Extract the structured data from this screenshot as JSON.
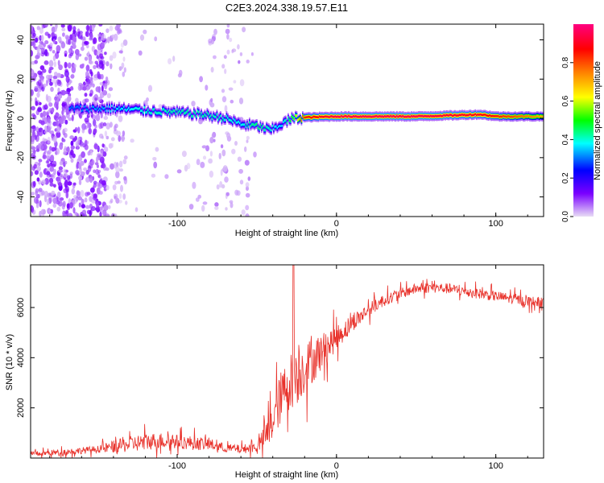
{
  "title": "C2E3.2024.338.19.57.E11",
  "chart_data": [
    {
      "type": "heatmap",
      "xlabel": "Height of straight line (km)",
      "ylabel": "Frequency (Hz)",
      "xlim": [
        -192,
        130
      ],
      "ylim": [
        -50,
        48
      ],
      "xticks": [
        -100,
        0,
        100
      ],
      "yticks": [
        -40,
        -20,
        0,
        20,
        40
      ],
      "colorbar": {
        "label": "Normalized spectral amplitude",
        "range": [
          0,
          1
        ],
        "ticks": [
          0,
          0.2,
          0.4,
          0.6,
          0.8
        ],
        "tick_labels": [
          "0.0",
          "0.2",
          "0.4",
          "0.6",
          "0.8"
        ],
        "colormap": [
          "#e8dcf5",
          "#7a00ff",
          "#0000ff",
          "#00ffff",
          "#00ff00",
          "#ffff00",
          "#ff8000",
          "#ff0000",
          "#ff0080"
        ]
      },
      "ridge": {
        "x": [
          -165,
          -140,
          -120,
          -100,
          -85,
          -70,
          -60,
          -50,
          -42,
          -35,
          -28,
          -20,
          0,
          50,
          90,
          100,
          130
        ],
        "freq": [
          5,
          5,
          4,
          3,
          2,
          0,
          -3,
          -4,
          -6,
          -3,
          0,
          0.5,
          1,
          1,
          2,
          1,
          1
        ],
        "amplitude": [
          0.3,
          0.35,
          0.4,
          0.42,
          0.42,
          0.4,
          0.38,
          0.45,
          0.4,
          0.35,
          0.5,
          0.85,
          0.95,
          0.95,
          0.9,
          0.85,
          0.7
        ]
      }
    },
    {
      "type": "line",
      "xlabel": "Height of straight line (km)",
      "ylabel": "SNR (10 * v/v)",
      "xlim": [
        -192,
        130
      ],
      "ylim": [
        0,
        7700
      ],
      "xticks": [
        -100,
        0,
        100
      ],
      "yticks": [
        2000,
        4000,
        6000
      ],
      "color": "#e8312a",
      "envelope": {
        "x": [
          -192,
          -170,
          -150,
          -140,
          -130,
          -120,
          -110,
          -100,
          -90,
          -80,
          -70,
          -60,
          -50,
          -45,
          -40,
          -35,
          -30,
          -25,
          -20,
          -15,
          -10,
          -5,
          0,
          10,
          20,
          30,
          40,
          50,
          60,
          70,
          80,
          90,
          100,
          110,
          120,
          130
        ],
        "y": [
          150,
          250,
          350,
          450,
          550,
          650,
          700,
          650,
          600,
          550,
          400,
          350,
          450,
          800,
          1500,
          2400,
          3000,
          3300,
          3600,
          3900,
          4200,
          4500,
          4800,
          5400,
          5900,
          6300,
          6550,
          6750,
          6800,
          6750,
          6650,
          6550,
          6450,
          6350,
          6250,
          6200
        ],
        "amp": [
          150,
          180,
          200,
          350,
          450,
          500,
          450,
          400,
          400,
          350,
          250,
          250,
          300,
          700,
          1200,
          1500,
          1600,
          1700,
          1500,
          1300,
          1100,
          900,
          700,
          500,
          400,
          350,
          300,
          300,
          300,
          300,
          300,
          300,
          300,
          300,
          300,
          300
        ]
      },
      "peak": {
        "x": -27,
        "y": 7700
      }
    }
  ]
}
